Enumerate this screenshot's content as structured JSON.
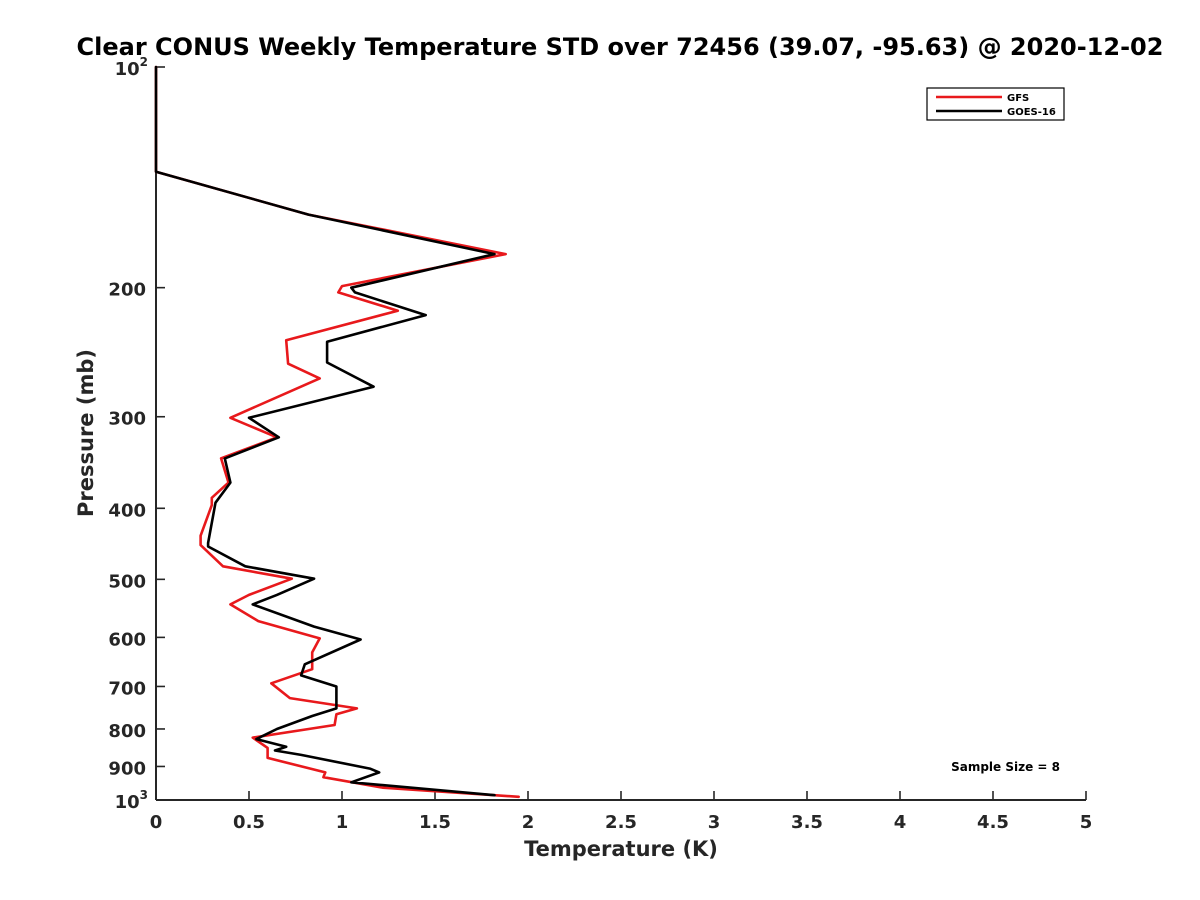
{
  "chart_data": {
    "type": "line",
    "title": "Clear CONUS Weekly Temperature STD over 72456 (39.07, -95.63) @ 2020-12-02",
    "xlabel": "Temperature (K)",
    "ylabel": "Pressure (mb)",
    "xlim": [
      0,
      5
    ],
    "ylim": [
      100,
      1000
    ],
    "y_scale": "log",
    "y_reversed": true,
    "grid": false,
    "legend_position": "top-right",
    "x_ticks": [
      {
        "value": 0,
        "label": "0"
      },
      {
        "value": 0.5,
        "label": "0.5"
      },
      {
        "value": 1,
        "label": "1"
      },
      {
        "value": 1.5,
        "label": "1.5"
      },
      {
        "value": 2,
        "label": "2"
      },
      {
        "value": 2.5,
        "label": "2.5"
      },
      {
        "value": 3,
        "label": "3"
      },
      {
        "value": 3.5,
        "label": "3.5"
      },
      {
        "value": 4,
        "label": "4"
      },
      {
        "value": 4.5,
        "label": "4.5"
      },
      {
        "value": 5,
        "label": "5"
      }
    ],
    "y_ticks": [
      {
        "value": 100,
        "label": "10",
        "sup": "2"
      },
      {
        "value": 200,
        "label": "200",
        "sup": ""
      },
      {
        "value": 300,
        "label": "300",
        "sup": ""
      },
      {
        "value": 400,
        "label": "400",
        "sup": ""
      },
      {
        "value": 500,
        "label": "500",
        "sup": ""
      },
      {
        "value": 600,
        "label": "600",
        "sup": ""
      },
      {
        "value": 700,
        "label": "700",
        "sup": ""
      },
      {
        "value": 800,
        "label": "800",
        "sup": ""
      },
      {
        "value": 900,
        "label": "900",
        "sup": ""
      },
      {
        "value": 1000,
        "label": "10",
        "sup": "3"
      }
    ],
    "series": [
      {
        "name": "GFS",
        "color": "#e8191c",
        "points": [
          [
            0.0,
            100
          ],
          [
            0.0,
            139
          ],
          [
            0.82,
            159
          ],
          [
            1.88,
            180
          ],
          [
            1.0,
            199
          ],
          [
            0.98,
            203
          ],
          [
            1.3,
            215
          ],
          [
            0.7,
            236
          ],
          [
            0.71,
            254
          ],
          [
            0.88,
            266
          ],
          [
            0.4,
            301
          ],
          [
            0.65,
            320
          ],
          [
            0.35,
            342
          ],
          [
            0.39,
            369
          ],
          [
            0.3,
            387
          ],
          [
            0.3,
            396
          ],
          [
            0.24,
            436
          ],
          [
            0.24,
            449
          ],
          [
            0.36,
            480
          ],
          [
            0.73,
            499
          ],
          [
            0.5,
            525
          ],
          [
            0.4,
            541
          ],
          [
            0.55,
            570
          ],
          [
            0.88,
            602
          ],
          [
            0.84,
            629
          ],
          [
            0.84,
            663
          ],
          [
            0.62,
            693
          ],
          [
            0.72,
            726
          ],
          [
            1.08,
            750
          ],
          [
            0.97,
            764
          ],
          [
            0.96,
            790
          ],
          [
            0.52,
            822
          ],
          [
            0.6,
            849
          ],
          [
            0.6,
            876
          ],
          [
            0.91,
            917
          ],
          [
            0.9,
            931
          ],
          [
            1.22,
            962
          ],
          [
            1.95,
            990
          ]
        ]
      },
      {
        "name": "GOES-16",
        "color": "#000000",
        "points": [
          [
            0.0,
            100
          ],
          [
            0.0,
            139
          ],
          [
            0.82,
            159
          ],
          [
            1.82,
            180
          ],
          [
            1.05,
            200
          ],
          [
            1.07,
            203
          ],
          [
            1.45,
            218
          ],
          [
            0.92,
            237
          ],
          [
            0.92,
            253
          ],
          [
            1.17,
            273
          ],
          [
            0.5,
            301
          ],
          [
            0.66,
            320
          ],
          [
            0.37,
            342
          ],
          [
            0.4,
            369
          ],
          [
            0.32,
            393
          ],
          [
            0.28,
            446
          ],
          [
            0.28,
            451
          ],
          [
            0.48,
            480
          ],
          [
            0.85,
            499
          ],
          [
            0.65,
            525
          ],
          [
            0.52,
            541
          ],
          [
            0.85,
            580
          ],
          [
            1.1,
            604
          ],
          [
            0.8,
            653
          ],
          [
            0.78,
            676
          ],
          [
            0.97,
            700
          ],
          [
            0.97,
            750
          ],
          [
            0.84,
            768
          ],
          [
            0.65,
            800
          ],
          [
            0.54,
            826
          ],
          [
            0.7,
            846
          ],
          [
            0.64,
            856
          ],
          [
            0.78,
            868
          ],
          [
            1.15,
            906
          ],
          [
            1.2,
            917
          ],
          [
            1.05,
            946
          ],
          [
            1.82,
            985
          ]
        ]
      }
    ],
    "annotations": [
      {
        "text": "Sample Size = 8",
        "position": "bottom-right"
      }
    ]
  }
}
